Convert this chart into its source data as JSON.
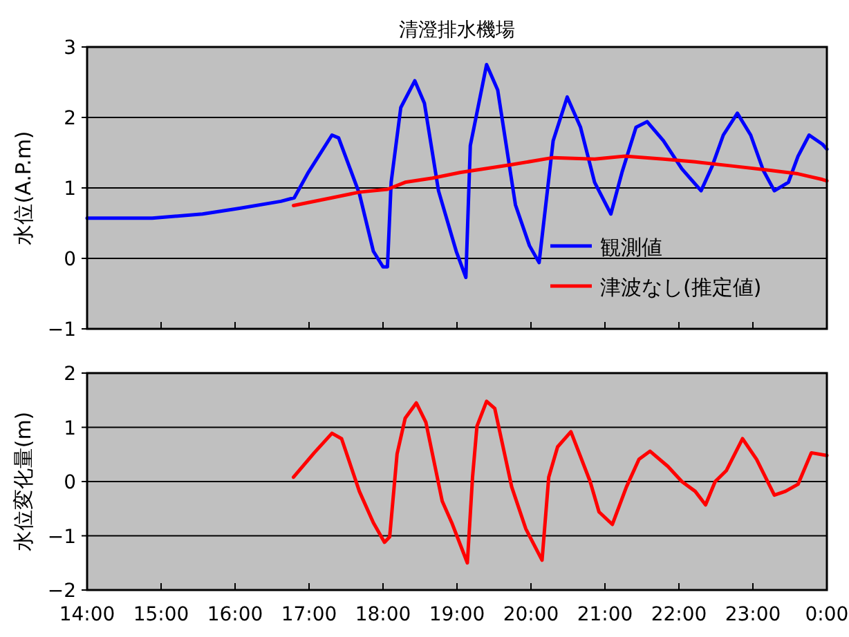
{
  "chart_data": [
    {
      "type": "line",
      "title": "清澄排水機場",
      "ylabel": "水位(A.P.m)",
      "xlim": [
        14,
        24
      ],
      "xticks": [
        {
          "value": 14,
          "label": null
        },
        {
          "value": 15,
          "label": null
        },
        {
          "value": 16,
          "label": null
        },
        {
          "value": 17,
          "label": null
        },
        {
          "value": 18,
          "label": null
        },
        {
          "value": 19,
          "label": null
        },
        {
          "value": 20,
          "label": null
        },
        {
          "value": 21,
          "label": null
        },
        {
          "value": 22,
          "label": null
        },
        {
          "value": 23,
          "label": null
        },
        {
          "value": 24,
          "label": null
        }
      ],
      "ylim": [
        -1,
        3
      ],
      "yticks": [
        -1,
        0,
        1,
        2,
        3
      ],
      "tick_labels": "y",
      "grid": "y",
      "legend": "bottom right",
      "marker": "none",
      "line_style": "solid",
      "series": [
        {
          "name": "観測値",
          "color": "#0000ff",
          "x": [
            14.0,
            14.88,
            15.56,
            16.06,
            16.62,
            16.8,
            16.99,
            17.31,
            17.4,
            17.68,
            17.87,
            18.0,
            18.06,
            18.11,
            18.24,
            18.43,
            18.56,
            18.75,
            18.99,
            19.12,
            19.18,
            19.23,
            19.4,
            19.55,
            19.79,
            19.98,
            20.11,
            20.3,
            20.49,
            20.67,
            20.86,
            21.08,
            21.23,
            21.42,
            21.57,
            21.79,
            22.04,
            22.3,
            22.45,
            22.6,
            22.79,
            22.97,
            23.14,
            23.29,
            23.48,
            23.61,
            23.76,
            23.94,
            24.0
          ],
          "values": [
            0.57,
            0.57,
            0.63,
            0.71,
            0.81,
            0.86,
            1.22,
            1.75,
            1.71,
            0.92,
            0.1,
            -0.12,
            -0.12,
            1.08,
            2.14,
            2.52,
            2.2,
            0.96,
            0.1,
            -0.27,
            1.6,
            1.86,
            2.75,
            2.39,
            0.76,
            0.18,
            -0.06,
            1.67,
            2.29,
            1.86,
            1.08,
            0.63,
            1.22,
            1.86,
            1.94,
            1.67,
            1.27,
            0.96,
            1.31,
            1.75,
            2.06,
            1.75,
            1.25,
            0.96,
            1.08,
            1.45,
            1.75,
            1.62,
            1.55
          ]
        },
        {
          "name": "津波なし(推定値)",
          "color": "#ff0000",
          "x": [
            16.79,
            17.31,
            17.68,
            18.06,
            18.3,
            18.67,
            19.05,
            19.36,
            19.74,
            20.3,
            20.86,
            21.27,
            21.79,
            22.22,
            22.73,
            23.23,
            23.61,
            23.94,
            24.0
          ],
          "values": [
            0.75,
            0.86,
            0.94,
            0.98,
            1.08,
            1.14,
            1.22,
            1.27,
            1.33,
            1.43,
            1.41,
            1.45,
            1.41,
            1.37,
            1.31,
            1.25,
            1.2,
            1.12,
            1.1
          ]
        }
      ]
    },
    {
      "type": "line",
      "ylabel": "水位変化量(m)",
      "xlim": [
        14,
        24
      ],
      "xticks": [
        {
          "value": 14,
          "label": "14:00"
        },
        {
          "value": 15,
          "label": "15:00"
        },
        {
          "value": 16,
          "label": "16:00"
        },
        {
          "value": 17,
          "label": "17:00"
        },
        {
          "value": 18,
          "label": "18:00"
        },
        {
          "value": 19,
          "label": "19:00"
        },
        {
          "value": 20,
          "label": "20:00"
        },
        {
          "value": 21,
          "label": "21:00"
        },
        {
          "value": 22,
          "label": "22:00"
        },
        {
          "value": 23,
          "label": "23:00"
        },
        {
          "value": 24,
          "label": "0:00"
        }
      ],
      "ylim": [
        -2,
        2
      ],
      "yticks": [
        -2,
        -1,
        0,
        1,
        2
      ],
      "grid": "y",
      "marker": "none",
      "line_style": "solid",
      "series": [
        {
          "color": "#ff0000",
          "x": [
            16.79,
            17.07,
            17.31,
            17.44,
            17.68,
            17.87,
            18.02,
            18.09,
            18.19,
            18.3,
            18.45,
            18.58,
            18.8,
            18.93,
            19.14,
            19.21,
            19.27,
            19.4,
            19.51,
            19.74,
            19.93,
            20.15,
            20.24,
            20.36,
            20.54,
            20.8,
            20.92,
            21.1,
            21.29,
            21.46,
            21.61,
            21.85,
            22.04,
            22.22,
            22.36,
            22.49,
            22.64,
            22.86,
            23.05,
            23.29,
            23.44,
            23.61,
            23.79,
            24.0
          ],
          "values": [
            0.08,
            0.53,
            0.89,
            0.79,
            -0.18,
            -0.76,
            -1.12,
            -1.02,
            0.51,
            1.17,
            1.45,
            1.09,
            -0.36,
            -0.76,
            -1.5,
            0.08,
            1.02,
            1.48,
            1.35,
            -0.1,
            -0.87,
            -1.45,
            0.08,
            0.64,
            0.92,
            0,
            -0.56,
            -0.79,
            -0.1,
            0.41,
            0.56,
            0.28,
            0,
            -0.18,
            -0.43,
            0,
            0.2,
            0.79,
            0.41,
            -0.25,
            -0.18,
            -0.05,
            0.53,
            0.48
          ]
        }
      ]
    }
  ]
}
